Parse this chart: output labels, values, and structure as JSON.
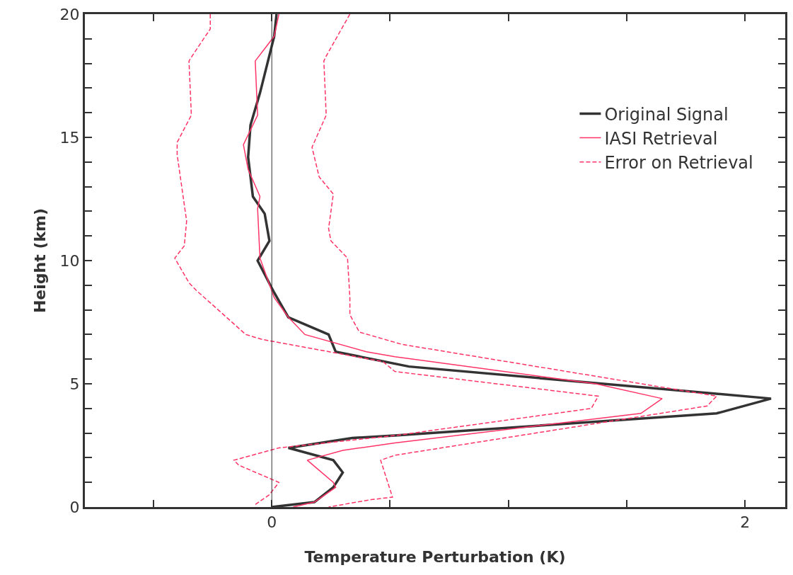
{
  "chart_data": {
    "type": "line",
    "xlabel": "Temperature Perturbation (K)",
    "ylabel": "Height (km)",
    "xlim": [
      -0.79,
      2.17
    ],
    "xticks": [
      {
        "value": -0.5,
        "label": null
      },
      0,
      {
        "value": 0.5,
        "label": null
      },
      {
        "value": 1,
        "label": null
      },
      {
        "value": 1.5,
        "label": null
      },
      2
    ],
    "ylim": [
      0,
      20
    ],
    "yticks": [
      0,
      {
        "value": 1,
        "label": null
      },
      {
        "value": 2,
        "label": null
      },
      {
        "value": 3,
        "label": null
      },
      {
        "value": 4,
        "label": null
      },
      5,
      {
        "value": 6,
        "label": null
      },
      {
        "value": 7,
        "label": null
      },
      {
        "value": 8,
        "label": null
      },
      {
        "value": 9,
        "label": null
      },
      10,
      {
        "value": 11,
        "label": null
      },
      {
        "value": 12,
        "label": null
      },
      {
        "value": 13,
        "label": null
      },
      {
        "value": 14,
        "label": null
      },
      15,
      {
        "value": 16,
        "label": null
      },
      {
        "value": 17,
        "label": null
      },
      {
        "value": 18,
        "label": null
      },
      {
        "value": 19,
        "label": null
      },
      20
    ],
    "grid": false,
    "legend": "top right",
    "ref_lines": [
      {
        "axis": "x",
        "value": 0,
        "color": "#333333"
      }
    ],
    "series": [
      {
        "name": "Original Signal",
        "color": "#333333",
        "line_style": "solid",
        "x": [
          0.02,
          0.01,
          -0.05,
          -0.09,
          -0.1,
          -0.08,
          -0.03,
          -0.01,
          -0.06,
          0.01,
          0.07,
          0.24,
          0.27,
          0.58,
          2.11,
          1.88,
          0.52,
          0.34,
          0.07,
          0.26,
          0.3,
          0.26,
          0.18,
          0.0
        ],
        "values": [
          20,
          19.1,
          16.8,
          15.5,
          14.2,
          12.6,
          11.9,
          10.8,
          10.0,
          8.7,
          7.7,
          7.0,
          6.3,
          5.7,
          4.4,
          3.8,
          2.9,
          2.8,
          2.4,
          1.9,
          1.4,
          0.8,
          0.2,
          0.0
        ]
      },
      {
        "name": "IASI Retrieval",
        "color": "#ff3366",
        "line_style": "solid",
        "x": [
          0.03,
          0.01,
          -0.07,
          -0.06,
          -0.12,
          -0.1,
          -0.05,
          -0.06,
          -0.05,
          0.01,
          0.07,
          0.14,
          0.4,
          0.52,
          1.37,
          1.65,
          1.56,
          0.52,
          0.3,
          0.15,
          0.26,
          0.27,
          0.18,
          0.09
        ],
        "values": [
          20,
          19.1,
          18.1,
          15.9,
          14.7,
          13.7,
          12.6,
          12.1,
          10.1,
          8.5,
          7.7,
          7.0,
          6.3,
          6.1,
          5.0,
          4.4,
          3.8,
          2.6,
          2.3,
          1.9,
          1.0,
          0.8,
          0.2,
          0.0
        ]
      },
      {
        "name": "Error on Retrieval",
        "color": "#ff3366",
        "line_style": "dashed",
        "x": [
          -0.26,
          -0.26,
          -0.33,
          -0.35,
          -0.34,
          -0.4,
          -0.4,
          -0.36,
          -0.37,
          -0.41,
          -0.35,
          -0.32,
          -0.11,
          -0.04,
          0.47,
          0.52,
          1.38,
          1.35,
          0.52,
          0.03,
          -0.16,
          -0.14,
          0.03,
          -0.01,
          -0.07
        ],
        "values": [
          20,
          19.4,
          18.4,
          18.1,
          15.9,
          14.8,
          14.3,
          11.6,
          10.6,
          10.1,
          9.1,
          8.8,
          7.0,
          6.8,
          5.9,
          5.5,
          4.5,
          4.0,
          2.9,
          2.4,
          1.9,
          1.7,
          1.0,
          0.5,
          0.1
        ]
      },
      {
        "color": "#ff3366",
        "line_style": "dashed",
        "x": [
          0.33,
          0.23,
          0.22,
          0.23,
          0.17,
          0.2,
          0.26,
          0.24,
          0.25,
          0.32,
          0.33,
          0.33,
          0.37,
          0.55,
          1.88,
          1.84,
          0.52,
          0.46,
          0.51,
          0.42,
          0.24
        ],
        "values": [
          20,
          18.3,
          18.1,
          15.9,
          14.6,
          13.4,
          12.7,
          11.3,
          10.8,
          10.1,
          8.5,
          7.8,
          7.1,
          6.6,
          4.5,
          4.1,
          2.1,
          1.9,
          0.4,
          0.3,
          0.0
        ]
      }
    ]
  }
}
